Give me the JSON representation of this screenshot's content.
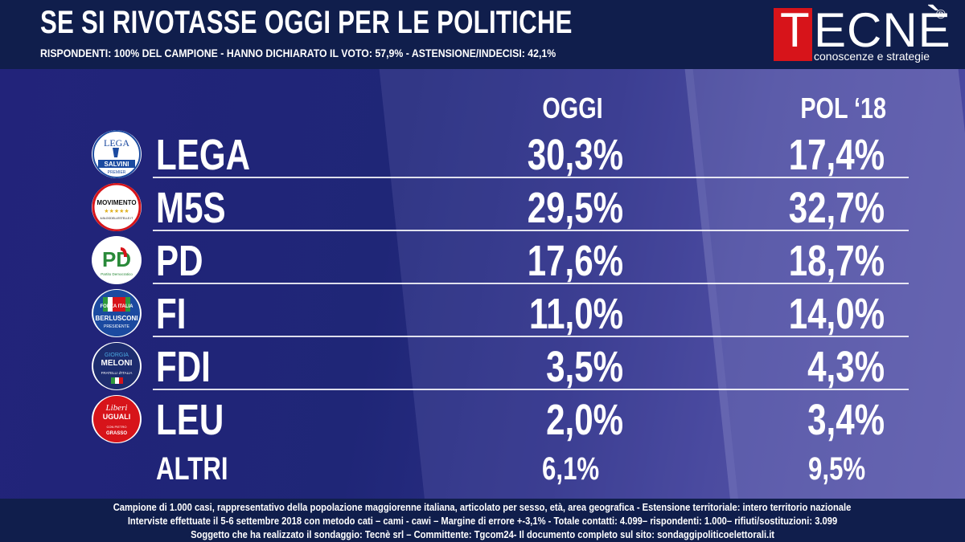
{
  "header": {
    "title": "SE SI RIVOTASSE OGGI PER LE POLITICHE",
    "subtitle": "RISPONDENTI: 100% DEL CAMPIONE - HANNO DICHIARATO IL VOTO: 57,9% - ASTENSIONE/INDECISI: 42,1%"
  },
  "brand": {
    "logo_first": "T",
    "logo_rest": "ECNÈ",
    "registered": "®",
    "tagline": "conoscenze e strategie",
    "color": "#d7141a"
  },
  "columns": {
    "oggi": "OGGI",
    "pol": "POL ‘18"
  },
  "chart_data": {
    "type": "table",
    "columns": [
      "OGGI",
      "POL ‘18"
    ],
    "rows": [
      {
        "party": "LEGA",
        "oggi": "30,3%",
        "pol": "17,4%",
        "logo": "lega-salvini-logo"
      },
      {
        "party": "M5S",
        "oggi": "29,5%",
        "pol": "32,7%",
        "logo": "movimento-5-stelle-logo"
      },
      {
        "party": "PD",
        "oggi": "17,6%",
        "pol": "18,7%",
        "logo": "partito-democratico-logo"
      },
      {
        "party": "FI",
        "oggi": "11,0%",
        "pol": "14,0%",
        "logo": "forza-italia-logo"
      },
      {
        "party": "FDI",
        "oggi": "3,5%",
        "pol": "4,3%",
        "logo": "fratelli-italia-logo"
      },
      {
        "party": "LEU",
        "oggi": "2,0%",
        "pol": "3,4%",
        "logo": "liberi-uguali-logo"
      },
      {
        "party": "ALTRI",
        "oggi": "6,1%",
        "pol": "9,5%",
        "logo": ""
      }
    ]
  },
  "logos": {
    "lega": {
      "top": "LEGA",
      "name": "SALVINI",
      "sub": "PREMIER"
    },
    "m5s": {
      "name": "MOVIMENTO",
      "stars": "★★★★★",
      "url": "ILBLOGDELLESTELLE.IT"
    },
    "pd": {
      "mark": "PD",
      "sub": "Partito Democratico"
    },
    "fi": {
      "top": "FORZA ITALIA",
      "name": "BERLUSCONI",
      "sub": "PRESIDENTE"
    },
    "fdi": {
      "top": "GIORGIA",
      "name": "MELONI",
      "sub": "FRATELLI d'ITALIA"
    },
    "leu": {
      "top": "Liberi",
      "name": "UGUALI",
      "sub": "CON PIETRO",
      "leader": "GRASSO"
    }
  },
  "footer": {
    "line1": "Campione di  1.000 casi, rappresentativo della popolazione maggiorenne italiana, articolato per sesso, età, area geografica - Estensione territoriale: intero territorio nazionale",
    "line2": "Interviste effettuate il 5-6 settembre 2018 con metodo cati – cami - cawi – Margine di errore +-3,1%  - Totale contatti: 4.099– rispondenti: 1.000– rifiuti/sostituzioni: 3.099",
    "line3": "Soggetto che ha realizzato il sondaggio: Tecnè srl – Committente: Tgcom24- Il documento completo sul sito: sondaggipoliticoelettorali.it"
  }
}
